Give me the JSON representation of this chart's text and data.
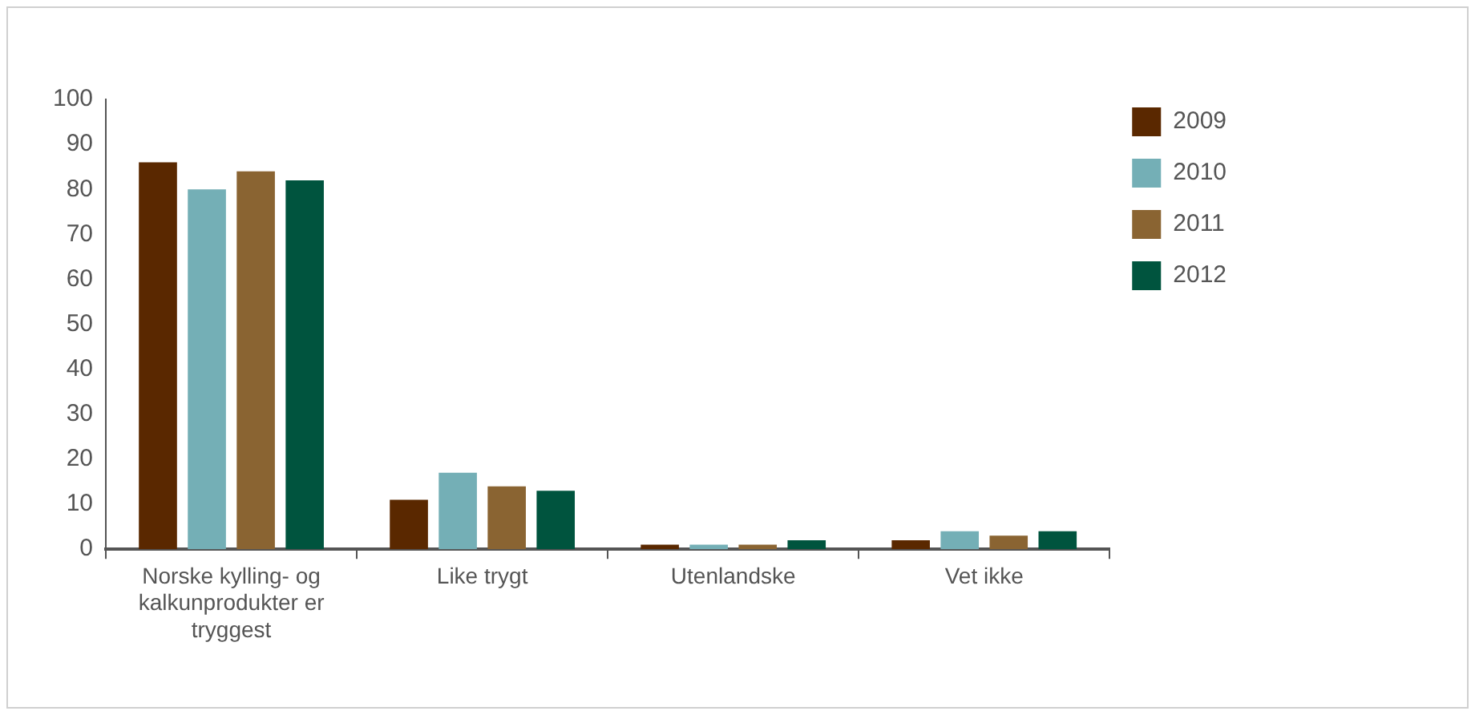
{
  "chart_data": {
    "type": "bar",
    "categories": [
      "Norske kylling- og kalkunprodukter er tryggest",
      "Like trygt",
      "Utenlandske",
      "Vet ikke"
    ],
    "series": [
      {
        "name": "2009",
        "color": "#5a2800",
        "values": [
          86,
          11,
          1,
          2
        ]
      },
      {
        "name": "2010",
        "color": "#74afb6",
        "values": [
          80,
          17,
          1,
          4
        ]
      },
      {
        "name": "2011",
        "color": "#8a6432",
        "values": [
          84,
          14,
          1,
          3
        ]
      },
      {
        "name": "2012",
        "color": "#00543e",
        "values": [
          82,
          13,
          2,
          4
        ]
      }
    ],
    "ylim": [
      0,
      100
    ],
    "yticks": [
      0,
      10,
      20,
      30,
      40,
      50,
      60,
      70,
      80,
      90,
      100
    ],
    "grid": false,
    "legend": "right"
  }
}
